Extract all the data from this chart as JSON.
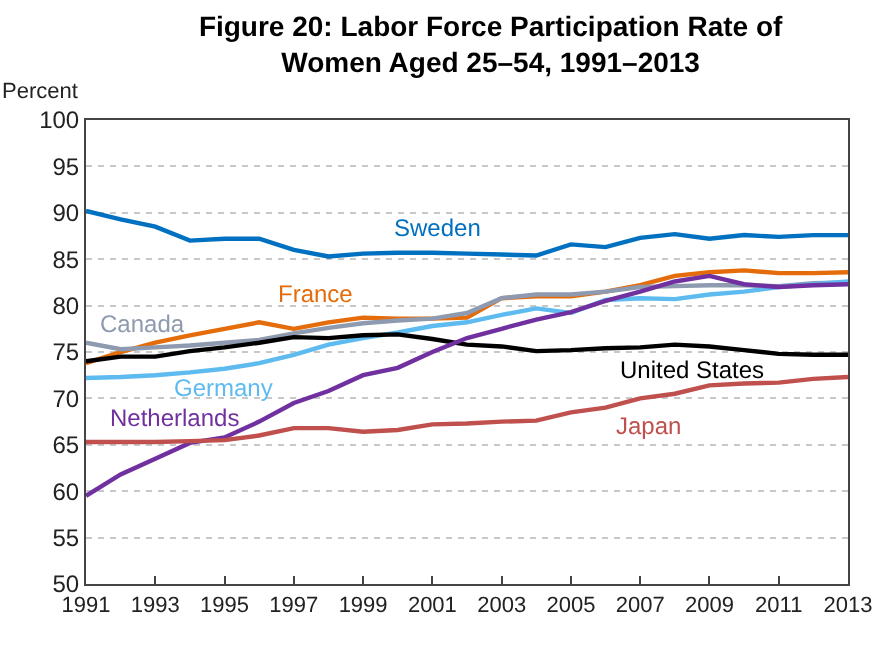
{
  "chart_data": {
    "type": "line",
    "title": "Figure 20: Labor Force Participation Rate of Women Aged 25–54, 1991–2013",
    "ylabel": "Percent",
    "x": [
      1991,
      1992,
      1993,
      1994,
      1995,
      1996,
      1997,
      1998,
      1999,
      2000,
      2001,
      2002,
      2003,
      2004,
      2005,
      2006,
      2007,
      2008,
      2009,
      2010,
      2011,
      2012,
      2013
    ],
    "series": [
      {
        "name": "Sweden",
        "color": "#0070c0",
        "values": [
          90.2,
          89.3,
          88.5,
          87,
          87.2,
          87.2,
          86,
          85.3,
          85.6,
          85.7,
          85.7,
          85.6,
          85.5,
          85.4,
          86.6,
          86.3,
          87.3,
          87.7,
          87.2,
          87.6,
          87.4,
          87.6,
          87.6
        ]
      },
      {
        "name": "France",
        "color": "#e46c0a",
        "values": [
          73.8,
          75,
          76,
          76.8,
          77.5,
          78.2,
          77.5,
          78.2,
          78.7,
          78.6,
          78.6,
          78.7,
          80.8,
          81,
          81,
          81.5,
          82.2,
          83.2,
          83.6,
          83.8,
          83.5,
          83.5,
          83.6
        ]
      },
      {
        "name": "Canada",
        "color": "#8e9aaf",
        "values": [
          76,
          75.3,
          75.5,
          75.7,
          76,
          76.3,
          77,
          77.6,
          78.1,
          78.4,
          78.6,
          79.2,
          80.8,
          81.2,
          81.2,
          81.5,
          82,
          82.1,
          82.2,
          82.2,
          82.1,
          82.4,
          82.5
        ]
      },
      {
        "name": "Germany",
        "color": "#5ebbf0",
        "values": [
          72.2,
          72.3,
          72.5,
          72.8,
          73.2,
          73.8,
          74.7,
          75.8,
          76.5,
          77.1,
          77.8,
          78.2,
          79,
          79.7,
          79.2,
          80.6,
          80.8,
          80.7,
          81.2,
          81.5,
          82,
          82.3,
          82.6
        ]
      },
      {
        "name": "United States",
        "color": "#000000",
        "values": [
          74,
          74.5,
          74.5,
          75.1,
          75.5,
          76,
          76.6,
          76.5,
          76.8,
          76.9,
          76.4,
          75.8,
          75.6,
          75.1,
          75.2,
          75.4,
          75.5,
          75.8,
          75.6,
          75.2,
          74.8,
          74.7,
          74.7
        ]
      },
      {
        "name": "Netherlands",
        "color": "#7030a0",
        "values": [
          59.5,
          61.8,
          63.5,
          65.2,
          65.8,
          67.5,
          69.5,
          70.8,
          72.5,
          73.3,
          75,
          76.5,
          77.5,
          78.5,
          79.3,
          80.5,
          81.5,
          82.6,
          83.2,
          82.3,
          82,
          82.2,
          82.3
        ]
      },
      {
        "name": "Japan",
        "color": "#c0504d",
        "values": [
          65.3,
          65.3,
          65.3,
          65.4,
          65.5,
          66,
          66.8,
          66.8,
          66.4,
          66.6,
          67.2,
          67.3,
          67.5,
          67.6,
          68.5,
          69,
          70,
          70.5,
          71.4,
          71.6,
          71.7,
          72.1,
          72.3
        ]
      }
    ],
    "xlim": [
      1991,
      2013
    ],
    "xticks": [
      1991,
      1993,
      1995,
      1997,
      1999,
      2001,
      2003,
      2005,
      2007,
      2009,
      2011,
      2013
    ],
    "ylim": [
      50,
      100
    ],
    "yticks": [
      50,
      55,
      60,
      65,
      70,
      75,
      80,
      85,
      90,
      95,
      100
    ],
    "grid": "y",
    "legend": false,
    "marker": "none",
    "line_style": "solid"
  }
}
